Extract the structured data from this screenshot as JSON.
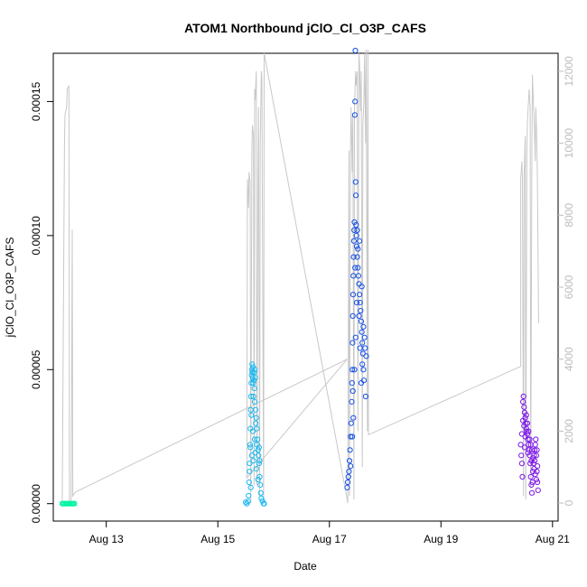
{
  "chart_data": {
    "type": "scatter",
    "title": "ATOM1 Northbound jClO_Cl_O3P_CAFS",
    "xlabel": "Date",
    "ylabel": "jClO_Cl_O3P_CAFS",
    "xlim": [
      12.05,
      21.1
    ],
    "ylim": [
      -6.5e-06,
      0.000168
    ],
    "y2lim": [
      -500,
      12500
    ],
    "x_ticks": [
      13,
      15,
      17,
      19,
      21
    ],
    "x_tick_labels": [
      "Aug 13",
      "Aug 15",
      "Aug 17",
      "Aug 19",
      "Aug 21"
    ],
    "y_ticks": [
      0,
      5e-05,
      0.0001,
      0.00015
    ],
    "y_tick_labels": [
      "0.00000",
      "0.00005",
      "0.00010",
      "0.00015"
    ],
    "y2_ticks": [
      0,
      2000,
      4000,
      6000,
      8000,
      10000,
      12000
    ],
    "y2_tick_labels": [
      "0",
      "2000",
      "4000",
      "6000",
      "8000",
      "10000",
      "12000"
    ],
    "grid": false,
    "legend": "none",
    "secondary_line_color": "#c8c8c8",
    "series": [
      {
        "color": "#00f5a0",
        "points": [
          [
            12.21,
            0
          ],
          [
            12.23,
            0
          ],
          [
            12.25,
            0
          ],
          [
            12.27,
            0
          ],
          [
            12.29,
            0
          ],
          [
            12.31,
            0
          ],
          [
            12.33,
            0
          ],
          [
            12.35,
            0
          ],
          [
            12.37,
            0
          ],
          [
            12.39,
            0
          ],
          [
            12.41,
            0
          ],
          [
            12.43,
            0
          ]
        ]
      },
      {
        "color": "#1ab8f0",
        "points": [
          [
            15.52,
            0
          ],
          [
            15.54,
            8e-07
          ],
          [
            15.55,
            3e-06
          ],
          [
            15.56,
            8e-06
          ],
          [
            15.57,
            1.5e-05
          ],
          [
            15.58,
            2.2e-05
          ],
          [
            15.585,
            2.8e-05
          ],
          [
            15.59,
            3.5e-05
          ],
          [
            15.595,
            4e-05
          ],
          [
            15.6,
            4.5e-05
          ],
          [
            15.605,
            4.8e-05
          ],
          [
            15.61,
            5e-05
          ],
          [
            15.615,
            5.2e-05
          ],
          [
            15.62,
            4.9e-05
          ],
          [
            15.625,
            4.7e-05
          ],
          [
            15.63,
            5.1e-05
          ],
          [
            15.635,
            4.5e-05
          ],
          [
            15.64,
            4e-05
          ],
          [
            15.645,
            4.6e-05
          ],
          [
            15.65,
            4.9e-05
          ],
          [
            15.655,
            4.3e-05
          ],
          [
            15.66,
            3.8e-05
          ],
          [
            15.665,
            5e-05
          ],
          [
            15.67,
            4.7e-05
          ],
          [
            15.675,
            3.5e-05
          ],
          [
            15.68,
            3e-05
          ],
          [
            15.69,
            3.2e-05
          ],
          [
            15.7,
            2.8e-05
          ],
          [
            15.71,
            2.4e-05
          ],
          [
            15.72,
            2e-05
          ],
          [
            15.73,
            1.8e-05
          ],
          [
            15.74,
            1.5e-05
          ],
          [
            15.75,
            1e-05
          ],
          [
            15.76,
            7e-06
          ],
          [
            15.77,
            4e-06
          ],
          [
            15.78,
            2e-06
          ],
          [
            15.8,
            1e-06
          ],
          [
            15.82,
            0
          ],
          [
            15.83,
            0
          ],
          [
            15.5,
            5e-07
          ],
          [
            15.57,
            1.2e-05
          ],
          [
            15.585,
            2.1e-05
          ],
          [
            15.6,
            3.3e-05
          ],
          [
            15.63,
            2.7e-05
          ],
          [
            15.66,
            2.4e-05
          ],
          [
            15.69,
            1.3e-05
          ],
          [
            15.72,
            9e-06
          ],
          [
            15.75,
            1.6e-05
          ],
          [
            15.59,
            6e-06
          ],
          [
            15.61,
            1.8e-05
          ],
          [
            15.64,
            1.6e-05
          ],
          [
            15.67,
            1.9e-05
          ],
          [
            15.7,
            2.2e-05
          ],
          [
            15.74,
            2.1e-05
          ]
        ]
      },
      {
        "color": "#1550e6",
        "points": [
          [
            17.32,
            6e-06
          ],
          [
            17.33,
            8e-06
          ],
          [
            17.34,
            1e-05
          ],
          [
            17.35,
            1.2e-05
          ],
          [
            17.36,
            1.6e-05
          ],
          [
            17.37,
            2e-05
          ],
          [
            17.38,
            2.5e-05
          ],
          [
            17.39,
            3e-05
          ],
          [
            17.4,
            3.8e-05
          ],
          [
            17.405,
            4.5e-05
          ],
          [
            17.41,
            5e-05
          ],
          [
            17.415,
            6e-05
          ],
          [
            17.42,
            7e-05
          ],
          [
            17.425,
            7.8e-05
          ],
          [
            17.43,
            8.5e-05
          ],
          [
            17.435,
            9.2e-05
          ],
          [
            17.44,
            9.8e-05
          ],
          [
            17.445,
            0.000102
          ],
          [
            17.45,
            0.000105
          ],
          [
            17.455,
            0.000145
          ],
          [
            17.46,
            0.00015
          ],
          [
            17.465,
            0.000169
          ],
          [
            17.47,
            0.00012
          ],
          [
            17.475,
            0.000115
          ],
          [
            17.48,
            0.000104
          ],
          [
            17.485,
            0.0001
          ],
          [
            17.49,
            9.6e-05
          ],
          [
            17.5,
            9.2e-05
          ],
          [
            17.51,
            8.8e-05
          ],
          [
            17.52,
            8.5e-05
          ],
          [
            17.53,
            8.2e-05
          ],
          [
            17.54,
            7.8e-05
          ],
          [
            17.55,
            7.5e-05
          ],
          [
            17.56,
            7.2e-05
          ],
          [
            17.57,
            6.8e-05
          ],
          [
            17.58,
            6.4e-05
          ],
          [
            17.59,
            6e-05
          ],
          [
            17.6,
            5.6e-05
          ],
          [
            17.61,
            5e-05
          ],
          [
            17.62,
            4.6e-05
          ],
          [
            17.63,
            6.2e-05
          ],
          [
            17.64,
            5.8e-05
          ],
          [
            17.65,
            4e-05
          ],
          [
            17.66,
            5.5e-05
          ],
          [
            17.41,
            2.5e-05
          ],
          [
            17.43,
            3.2e-05
          ],
          [
            17.45,
            5e-05
          ],
          [
            17.47,
            6.2e-05
          ],
          [
            17.49,
            7.5e-05
          ],
          [
            17.51,
            9.5e-05
          ],
          [
            17.53,
            7e-05
          ],
          [
            17.55,
            5.8e-05
          ],
          [
            17.57,
            4.5e-05
          ],
          [
            17.59,
            5.2e-05
          ],
          [
            17.61,
            6.6e-05
          ],
          [
            17.38,
            1.4e-05
          ],
          [
            17.42,
            4.2e-05
          ],
          [
            17.46,
            8.8e-05
          ],
          [
            17.5,
            0.000102
          ],
          [
            17.54,
            9.8e-05
          ],
          [
            17.58,
            8.1e-05
          ]
        ]
      },
      {
        "color": "#7d18e8",
        "points": [
          [
            20.43,
            2.2e-05
          ],
          [
            20.44,
            1.8e-05
          ],
          [
            20.45,
            1.5e-05
          ],
          [
            20.46,
            1e-05
          ],
          [
            20.47,
            3.8e-05
          ],
          [
            20.48,
            4e-05
          ],
          [
            20.49,
            3.6e-05
          ],
          [
            20.5,
            3.4e-05
          ],
          [
            20.51,
            3.2e-05
          ],
          [
            20.52,
            3e-05
          ],
          [
            20.53,
            2.8e-05
          ],
          [
            20.54,
            2.7e-05
          ],
          [
            20.55,
            2.6e-05
          ],
          [
            20.56,
            2.4e-05
          ],
          [
            20.57,
            2.2e-05
          ],
          [
            20.58,
            2e-05
          ],
          [
            20.59,
            1.8e-05
          ],
          [
            20.6,
            1.5e-05
          ],
          [
            20.61,
            1e-05
          ],
          [
            20.62,
            7e-06
          ],
          [
            20.63,
            4e-06
          ],
          [
            20.64,
            8e-06
          ],
          [
            20.65,
            1.2e-05
          ],
          [
            20.66,
            1.5e-05
          ],
          [
            20.67,
            1.8e-05
          ],
          [
            20.68,
            2e-05
          ],
          [
            20.69,
            2.2e-05
          ],
          [
            20.7,
            2.4e-05
          ],
          [
            20.71,
            1.8e-05
          ],
          [
            20.72,
            1.2e-05
          ],
          [
            20.73,
            8e-06
          ],
          [
            20.74,
            5e-06
          ],
          [
            20.45,
            2.6e-05
          ],
          [
            20.47,
            3.1e-05
          ],
          [
            20.49,
            2.9e-05
          ],
          [
            20.51,
            2.5e-05
          ],
          [
            20.53,
            3.3e-05
          ],
          [
            20.55,
            3e-05
          ],
          [
            20.57,
            2.7e-05
          ],
          [
            20.59,
            2.4e-05
          ],
          [
            20.61,
            2.2e-05
          ],
          [
            20.63,
            2e-05
          ],
          [
            20.65,
            1.7e-05
          ],
          [
            20.67,
            1.3e-05
          ],
          [
            20.69,
            1.1e-05
          ],
          [
            20.71,
            9e-06
          ],
          [
            20.73,
            1.4e-05
          ],
          [
            20.5,
            2.1e-05
          ],
          [
            20.56,
            1.9e-05
          ],
          [
            20.62,
            1.6e-05
          ],
          [
            20.68,
            1.6e-05
          ],
          [
            20.72,
            2e-05
          ]
        ]
      }
    ],
    "secondary_series": [
      {
        "color": "#c8c8c8",
        "x": [
          12.21,
          12.25,
          12.26,
          12.29,
          12.3,
          12.33,
          12.34,
          12.36,
          12.37,
          12.39,
          12.4,
          12.44,
          17.32,
          15.52,
          15.53,
          15.55,
          15.56,
          15.58,
          15.59,
          15.61,
          15.62,
          15.64,
          15.65,
          15.66,
          15.67,
          15.69,
          15.7,
          15.72,
          15.73,
          15.75,
          15.76,
          15.78,
          15.79,
          15.82,
          15.83,
          17.32,
          17.33,
          17.35,
          17.36,
          17.38,
          17.39,
          17.41,
          17.42,
          17.44,
          17.45,
          17.47,
          17.48,
          17.5,
          17.51,
          17.53,
          17.54,
          17.56,
          17.57,
          17.59,
          17.6,
          17.62,
          17.63,
          17.65,
          17.66,
          17.68,
          17.69,
          17.7,
          20.43,
          20.43,
          20.45,
          20.46,
          20.48,
          20.49,
          20.51,
          20.52,
          20.54,
          20.55,
          20.57,
          20.58,
          20.6,
          20.61,
          20.63,
          20.64,
          20.66,
          20.67,
          20.69,
          20.7,
          20.72,
          20.73,
          20.75
        ],
        "y": [
          0,
          10000,
          10800,
          11000,
          11500,
          11600,
          0,
          0,
          0,
          7600,
          200,
          300,
          4000,
          700,
          9000,
          8200,
          9200,
          8900,
          0,
          9800,
          10500,
          10200,
          500,
          11500,
          11200,
          12000,
          500,
          8900,
          11000,
          200,
          10000,
          12000,
          11800,
          0,
          12500,
          100,
          0,
          9800,
          200,
          10000,
          11000,
          9200,
          10800,
          100,
          11000,
          12000,
          11600,
          12000,
          2000,
          12500,
          12200,
          10900,
          12000,
          1000,
          10500,
          11200,
          12500,
          10000,
          12600,
          2000,
          12600,
          1900,
          3800,
          9000,
          9500,
          9000,
          200,
          9000,
          10200,
          100,
          9800,
          10600,
          11200,
          11500,
          11000,
          400,
          10000,
          11900,
          11000,
          10700,
          9500,
          11000,
          10000,
          9000,
          5000
        ]
      }
    ]
  }
}
